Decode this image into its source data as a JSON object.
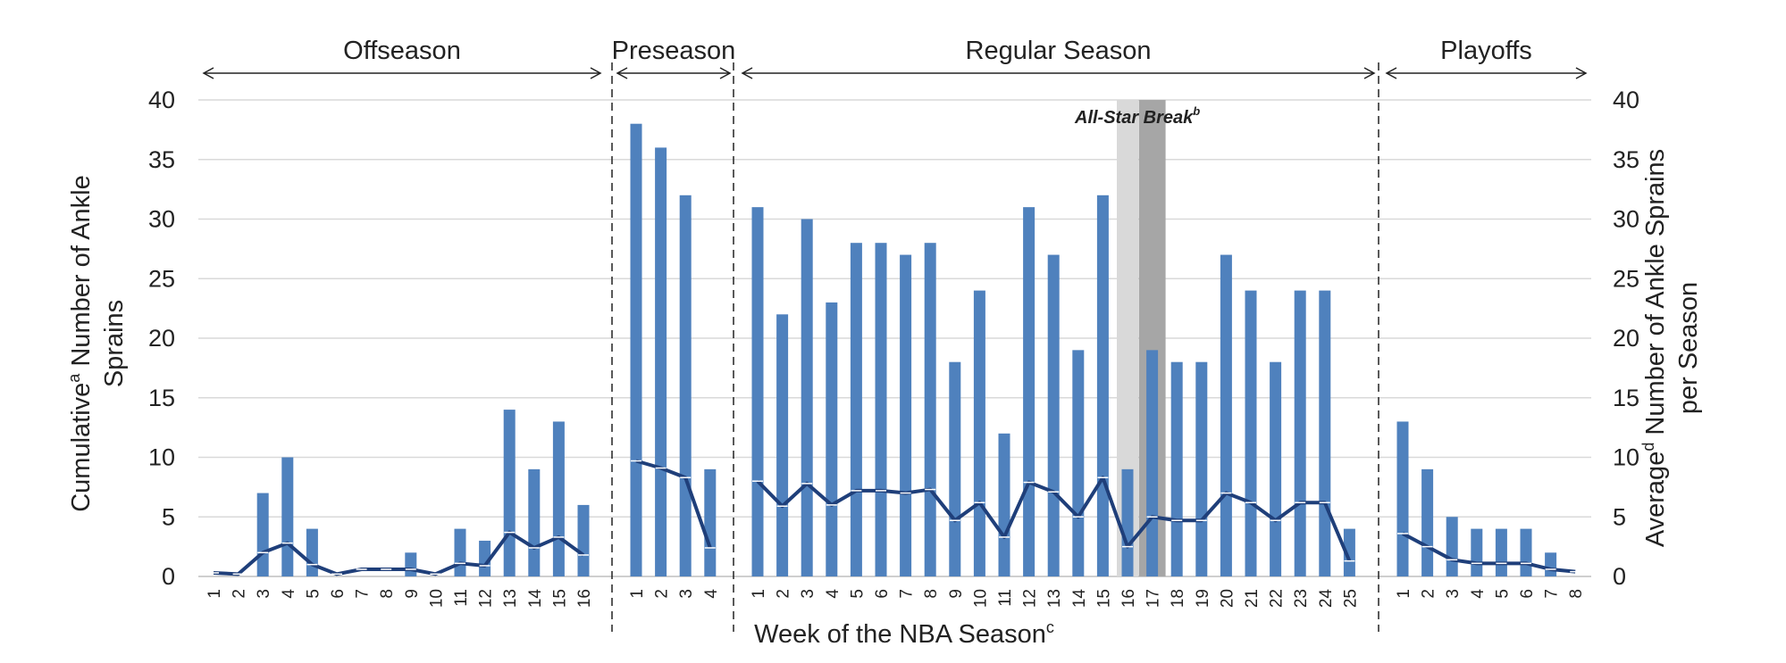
{
  "chart_data": {
    "type": "bar",
    "title": "",
    "xlabel": "Week of the NBA Season",
    "xlabel_sup": "c",
    "ylabel_left_lines": [
      "Cumulative",
      "Sprains"
    ],
    "ylabel_left_sup": "a",
    "ylabel_left_rest": " Number of Ankle",
    "ylabel_right_lines": [
      "Average",
      "per Season"
    ],
    "ylabel_right_sup": "d",
    "ylabel_right_rest": " Number of Ankle Sprains",
    "ylim": [
      0,
      40
    ],
    "yticks": [
      0,
      5,
      10,
      15,
      20,
      25,
      30,
      35,
      40
    ],
    "annotation": "All-Star Break",
    "annotation_sup": "b",
    "allstar_weeks": [
      "16",
      "17"
    ],
    "bar_color": "#4f81bd",
    "line_color": "#1f3f7a",
    "phases": [
      {
        "name": "Offseason",
        "weeks": [
          "1",
          "2",
          "3",
          "4",
          "5",
          "6",
          "7",
          "8",
          "9",
          "10",
          "11",
          "12",
          "13",
          "14",
          "15",
          "16"
        ],
        "cumulative": [
          0,
          0,
          7,
          10,
          4,
          0,
          0,
          0,
          2,
          0,
          4,
          3,
          14,
          9,
          13,
          6
        ],
        "average": [
          0.3,
          0.2,
          2.0,
          2.8,
          1.0,
          0.2,
          0.6,
          0.6,
          0.6,
          0.2,
          1.1,
          0.9,
          3.7,
          2.4,
          3.3,
          1.8
        ]
      },
      {
        "name": "Preseason",
        "weeks": [
          "1",
          "2",
          "3",
          "4"
        ],
        "cumulative": [
          38,
          36,
          32,
          9
        ],
        "average": [
          9.7,
          9.1,
          8.3,
          2.4
        ]
      },
      {
        "name": "Regular Season",
        "weeks": [
          "1",
          "2",
          "3",
          "4",
          "5",
          "6",
          "7",
          "8",
          "9",
          "10",
          "11",
          "12",
          "13",
          "14",
          "15",
          "16",
          "17",
          "18",
          "19",
          "20",
          "21",
          "22",
          "23",
          "24",
          "25"
        ],
        "cumulative": [
          31,
          22,
          30,
          23,
          28,
          28,
          27,
          28,
          18,
          24,
          12,
          31,
          27,
          19,
          32,
          9,
          19,
          18,
          18,
          27,
          24,
          18,
          24,
          24,
          4
        ],
        "average": [
          8.0,
          5.9,
          7.8,
          6.0,
          7.2,
          7.2,
          7.0,
          7.3,
          4.7,
          6.2,
          3.3,
          7.9,
          7.1,
          5.0,
          8.3,
          2.5,
          5.0,
          4.7,
          4.7,
          7.0,
          6.2,
          4.7,
          6.2,
          6.2,
          1.3
        ]
      },
      {
        "name": "Playoffs",
        "weeks": [
          "1",
          "2",
          "3",
          "4",
          "5",
          "6",
          "7",
          "8"
        ],
        "cumulative": [
          13,
          9,
          5,
          4,
          4,
          4,
          2,
          0
        ],
        "average": [
          3.6,
          2.5,
          1.4,
          1.1,
          1.1,
          1.1,
          0.6,
          0.4
        ]
      }
    ]
  }
}
